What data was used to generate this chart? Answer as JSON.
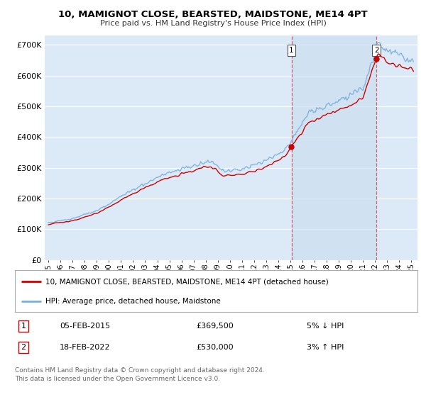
{
  "title": "10, MAMIGNOT CLOSE, BEARSTED, MAIDSTONE, ME14 4PT",
  "subtitle": "Price paid vs. HM Land Registry's House Price Index (HPI)",
  "ylim": [
    0,
    730000
  ],
  "xlim_start": 1994.7,
  "xlim_end": 2025.5,
  "background_color": "#ffffff",
  "plot_bg_color": "#dce9f7",
  "shade_color": "#cce0f0",
  "grid_color": "#ffffff",
  "hpi_color": "#7ab0d8",
  "price_color": "#cc0000",
  "sale1_year": 2015.09,
  "sale1_value": 369500,
  "sale2_year": 2022.12,
  "sale2_value": 530000,
  "legend_label1": "10, MAMIGNOT CLOSE, BEARSTED, MAIDSTONE, ME14 4PT (detached house)",
  "legend_label2": "HPI: Average price, detached house, Maidstone",
  "note1_num": "1",
  "note1_date": "05-FEB-2015",
  "note1_price": "£369,500",
  "note1_hpi": "5% ↓ HPI",
  "note2_num": "2",
  "note2_date": "18-FEB-2022",
  "note2_price": "£530,000",
  "note2_hpi": "3% ↑ HPI",
  "copyright": "Contains HM Land Registry data © Crown copyright and database right 2024.\nThis data is licensed under the Open Government Licence v3.0."
}
